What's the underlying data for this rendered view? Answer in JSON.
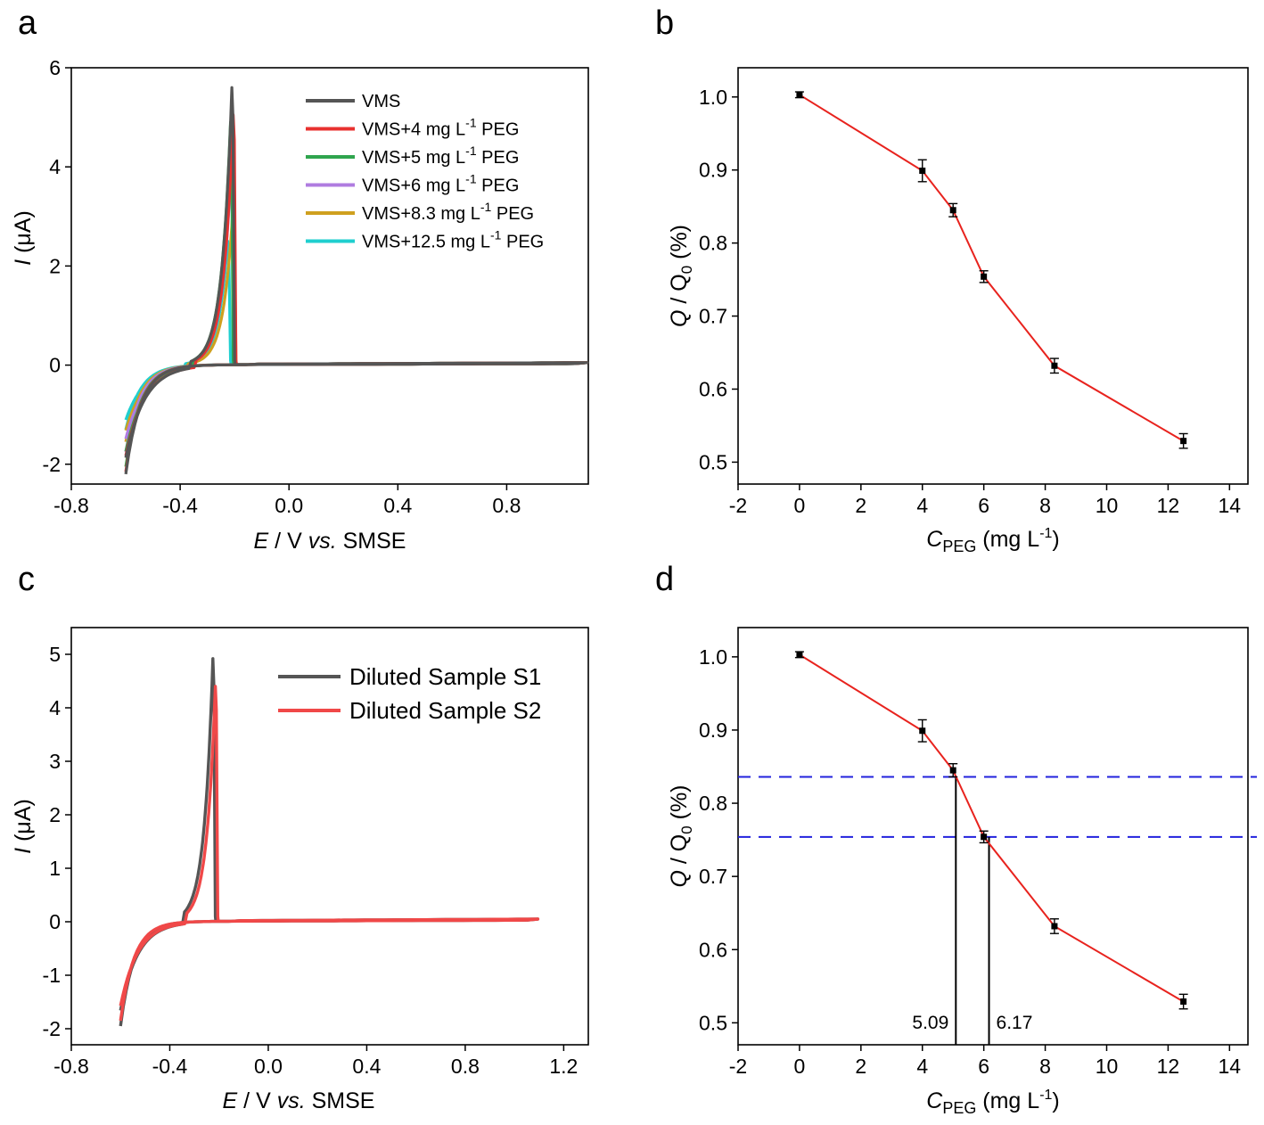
{
  "panels": {
    "a": "a",
    "b": "b",
    "c": "c",
    "d": "d"
  },
  "axis_titles": {
    "a_x": {
      "italic": "E",
      "rest": " / V ",
      "italic2": "vs.",
      "rest2": " SMSE"
    },
    "a_y": {
      "italic": "I",
      "rest": " (μA)"
    },
    "b_x": {
      "main": "C",
      "sub": "PEG",
      "rest": " (mg L",
      "sup": "-1",
      "end": ")"
    },
    "b_y": {
      "italic": "Q",
      "rest": " / Q",
      "sub": "0",
      "end": " (%)"
    },
    "c_x": {
      "italic": "E",
      "rest": " / V ",
      "italic2": "vs.",
      "rest2": " SMSE"
    },
    "c_y": {
      "italic": "I",
      "rest": "  (μA)"
    },
    "d_x": {
      "main": "C",
      "sub": "PEG",
      "rest": " (mg L",
      "sup": "-1",
      "end": ")"
    },
    "d_y": {
      "italic": "Q",
      "rest": " / Q",
      "sub": "0",
      "end": " (%)"
    }
  },
  "chart_data": [
    {
      "panel": "a",
      "type": "line",
      "xlabel": "E / V vs. SMSE",
      "ylabel": "I (μA)",
      "xlim": [
        -0.8,
        1.1
      ],
      "ylim": [
        -2.4,
        6.0
      ],
      "xticks": [
        -0.8,
        -0.4,
        0.0,
        0.4,
        0.8
      ],
      "xtick_labels": [
        "-0.8",
        "-0.4",
        "0.0",
        "0.4",
        "0.8"
      ],
      "yticks": [
        -2,
        0,
        2,
        4,
        6
      ],
      "ytick_labels": [
        "-2",
        "0",
        "2",
        "4",
        "6"
      ],
      "legend_position": "top-right",
      "series": [
        {
          "name": "VMS",
          "legend": {
            "pre": "VMS",
            "sup": "",
            "post": ""
          },
          "color": "#555555",
          "peak_E": -0.21,
          "peak_I": 5.6,
          "min_I": -2.2,
          "onset_E": -0.36
        },
        {
          "name": "VMS+4 mg L-1 PEG",
          "legend": {
            "pre": "VMS+4 mg L",
            "sup": "-1",
            "post": " PEG"
          },
          "color": "#e8312f",
          "peak_E": -0.205,
          "peak_I": 5.05,
          "min_I": -2.15,
          "onset_E": -0.34
        },
        {
          "name": "VMS+5 mg L-1 PEG",
          "legend": {
            "pre": "VMS+5 mg L",
            "sup": "-1",
            "post": " PEG"
          },
          "color": "#2fa54e",
          "peak_E": -0.215,
          "peak_I": 4.9,
          "min_I": -2.05,
          "onset_E": -0.35
        },
        {
          "name": "VMS+6 mg L-1 PEG",
          "legend": {
            "pre": "VMS+6 mg L",
            "sup": "-1",
            "post": " PEG"
          },
          "color": "#b07ce0",
          "peak_E": -0.21,
          "peak_I": 4.3,
          "min_I": -1.75,
          "onset_E": -0.36
        },
        {
          "name": "VMS+8.3 mg L-1 PEG",
          "legend": {
            "pre": "VMS+8.3 mg L",
            "sup": "-1",
            "post": " PEG"
          },
          "color": "#cfa01f",
          "peak_E": -0.205,
          "peak_I": 3.25,
          "min_I": -1.55,
          "onset_E": -0.37
        },
        {
          "name": "VMS+12.5 mg L-1 PEG",
          "legend": {
            "pre": "VMS+12.5 mg L",
            "sup": "-1",
            "post": " PEG"
          },
          "color": "#1fcfcf",
          "peak_E": -0.225,
          "peak_I": 2.5,
          "min_I": -1.3,
          "onset_E": -0.38
        }
      ]
    },
    {
      "panel": "b",
      "type": "line",
      "xlabel": "CPEG (mg L-1)",
      "ylabel": "Q / Q0 (%)",
      "xlim": [
        -2,
        14.6
      ],
      "ylim": [
        0.47,
        1.04
      ],
      "xticks": [
        -2,
        0,
        2,
        4,
        6,
        8,
        10,
        12,
        14
      ],
      "xtick_labels": [
        "-2",
        "0",
        "2",
        "4",
        "6",
        "8",
        "10",
        "12",
        "14"
      ],
      "yticks": [
        0.5,
        0.6,
        0.7,
        0.8,
        0.9,
        1.0
      ],
      "ytick_labels": [
        "0.5",
        "0.6",
        "0.7",
        "0.8",
        "0.9",
        "1.0"
      ],
      "series": [
        {
          "color": "#e8231e",
          "x": [
            0,
            4,
            5,
            6,
            8.3,
            12.5
          ],
          "y": [
            1.003,
            0.899,
            0.845,
            0.754,
            0.632,
            0.529
          ],
          "err": [
            0.004,
            0.015,
            0.009,
            0.008,
            0.01,
            0.01
          ]
        }
      ]
    },
    {
      "panel": "c",
      "type": "line",
      "xlabel": "E / V vs. SMSE",
      "ylabel": "I (μA)",
      "xlim": [
        -0.8,
        1.3
      ],
      "ylim": [
        -2.3,
        5.5
      ],
      "xticks": [
        -0.8,
        -0.4,
        0.0,
        0.4,
        0.8,
        1.2
      ],
      "xtick_labels": [
        "-0.8",
        "-0.4",
        "0.0",
        "0.4",
        "0.8",
        "1.2"
      ],
      "yticks": [
        -2,
        -1,
        0,
        1,
        2,
        3,
        4,
        5
      ],
      "ytick_labels": [
        "-2",
        "-1",
        "0",
        "1",
        "2",
        "3",
        "4",
        "5"
      ],
      "legend_position": "top-right",
      "series": [
        {
          "name": "Diluted Sample S1",
          "legend": {
            "pre": "Diluted Sample S1",
            "sup": "",
            "post": ""
          },
          "color": "#555555",
          "peak_E": -0.225,
          "peak_I": 4.92,
          "min_I": -1.95,
          "onset_E": -0.34
        },
        {
          "name": "Diluted Sample S2",
          "legend": {
            "pre": "Diluted Sample S2",
            "sup": "",
            "post": ""
          },
          "color": "#f04848",
          "peak_E": -0.215,
          "peak_I": 4.4,
          "min_I": -1.85,
          "onset_E": -0.33
        }
      ]
    },
    {
      "panel": "d",
      "type": "line",
      "xlabel": "CPEG (mg L-1)",
      "ylabel": "Q / Q0 (%)",
      "xlim": [
        -2,
        14.6
      ],
      "ylim": [
        0.47,
        1.04
      ],
      "xticks": [
        -2,
        0,
        2,
        4,
        6,
        8,
        10,
        12,
        14
      ],
      "xtick_labels": [
        "-2",
        "0",
        "2",
        "4",
        "6",
        "8",
        "10",
        "12",
        "14"
      ],
      "yticks": [
        0.5,
        0.6,
        0.7,
        0.8,
        0.9,
        1.0
      ],
      "ytick_labels": [
        "0.5",
        "0.6",
        "0.7",
        "0.8",
        "0.9",
        "1.0"
      ],
      "series": [
        {
          "color": "#e8231e",
          "x": [
            0,
            4,
            5,
            6,
            8.3,
            12.5
          ],
          "y": [
            1.003,
            0.899,
            0.845,
            0.754,
            0.632,
            0.529
          ],
          "err": [
            0.004,
            0.015,
            0.009,
            0.008,
            0.01,
            0.01
          ]
        }
      ],
      "hlines": [
        0.836,
        0.754
      ],
      "hline_color": "#2222dd",
      "vlines": [
        {
          "x": 5.09,
          "y": 0.836,
          "label": "5.09"
        },
        {
          "x": 6.17,
          "y": 0.754,
          "label": "6.17"
        }
      ]
    }
  ]
}
